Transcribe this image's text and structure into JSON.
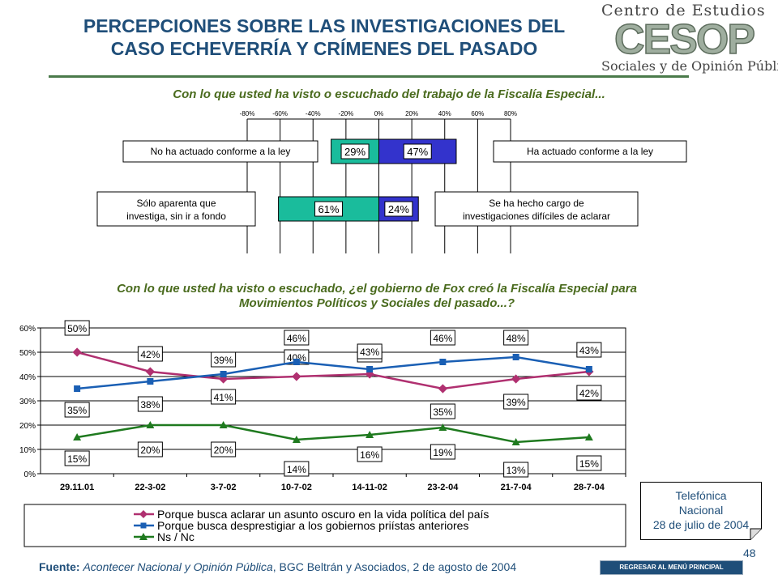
{
  "title_line1": "PERCEPCIONES SOBRE LAS INVESTIGACIONES DEL",
  "title_line2": "CASO ECHEVERRÍA Y CRÍMENES DEL PASADO",
  "logo": {
    "top": "Centro de Estudios",
    "mid": "CESOP",
    "bottom": "Sociales y de Opinión Pública"
  },
  "question1": "Con lo que usted ha visto o escuchado del trabajo de la Fiscalía Especial...",
  "question2_line1": "Con lo que usted ha visto o escuchado, ¿el gobierno de Fox creó la Fiscalía Especial para",
  "question2_line2": "Movimientos Políticos y Sociales del pasado...?",
  "colors": {
    "title": "#1f4e79",
    "question": "#4a6b1e",
    "teal": "#1abc9c",
    "blue": "#3333cc",
    "magenta": "#b03070",
    "lineblue": "#1a5fb4",
    "green": "#1f7a1f"
  },
  "chart_data": [
    {
      "type": "bar",
      "orientation": "horizontal-diverging",
      "xlim": [
        -80,
        80
      ],
      "ticks": [
        "-80%",
        "-60%",
        "-40%",
        "-20%",
        "0%",
        "20%",
        "40%",
        "60%",
        "80%"
      ],
      "rows": [
        {
          "left_label": "No ha actuado conforme a la ley",
          "left_value": -29,
          "left_text": "29%",
          "right_label": "Ha actuado conforme a la ley",
          "right_value": 47,
          "right_text": "47%"
        },
        {
          "left_label": "Sólo aparenta que investiga, sin ir a fondo",
          "left_value": -61,
          "left_text": "61%",
          "right_label": "Se ha hecho cargo de investigaciones difíciles de aclarar",
          "right_value": 24,
          "right_text": "24%"
        }
      ]
    },
    {
      "type": "line",
      "categories": [
        "29.11.01",
        "22-3-02",
        "3-7-02",
        "10-7-02",
        "14-11-02",
        "23-2-04",
        "21-7-04",
        "28-7-04"
      ],
      "ylim": [
        0,
        60
      ],
      "yticks": [
        "0%",
        "10%",
        "20%",
        "30%",
        "40%",
        "50%",
        "60%"
      ],
      "legend_position": "bottom",
      "series": [
        {
          "name": "Porque busca aclarar un asunto oscuro en la vida política del país",
          "values": [
            50,
            42,
            39,
            40,
            41,
            35,
            39,
            42
          ],
          "labels": [
            "50%",
            "42%",
            "39%",
            "40%",
            "41%",
            "35%",
            "39%",
            "42%"
          ]
        },
        {
          "name": "Porque busca desprestigiar a los gobiernos priístas anteriores",
          "values": [
            35,
            38,
            41,
            46,
            43,
            46,
            48,
            43
          ],
          "labels": [
            "35%",
            "38%",
            "41%",
            "46%",
            "43%",
            "46%",
            "48%",
            "43%"
          ]
        },
        {
          "name": "Ns / Nc",
          "values": [
            15,
            20,
            20,
            14,
            16,
            19,
            13,
            15
          ],
          "labels": [
            "15%",
            "20%",
            "20%",
            "14%",
            "16%",
            "19%",
            "13%",
            "15%"
          ]
        }
      ]
    }
  ],
  "source_label": "Fuente:",
  "source_text": "Acontecer Nacional y Opinión Pública",
  "source_rest": ", BGC Beltrán y Asociados, 2 de agosto de 2004",
  "note": {
    "line1": "Telefónica",
    "line2": "Nacional",
    "line3": "28 de julio de 2004"
  },
  "page_number": "48",
  "menu_button": "REGRESAR AL MENÚ PRINCIPAL"
}
